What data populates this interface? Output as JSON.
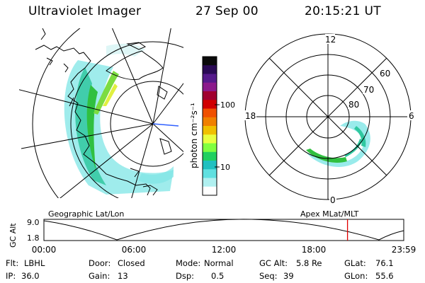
{
  "header": {
    "instrument": "Ultraviolet Imager",
    "date": "27 Sep 00",
    "time": "20:15:21 UT"
  },
  "geo_panel": {
    "caption": "Geographic Lat/Lon"
  },
  "colorbar": {
    "unit": "photon cm⁻²s⁻¹",
    "tick_labels": [
      "100",
      "10"
    ],
    "colors": [
      "#0a0a0a",
      "#2a0a55",
      "#551a8b",
      "#8b1a8b",
      "#a00030",
      "#d00000",
      "#f05000",
      "#f08000",
      "#f0c000",
      "#e8ff40",
      "#80ff40",
      "#20d060",
      "#20c0c0",
      "#60e0e0",
      "#b0f0f0",
      "#ffffff"
    ]
  },
  "apex_panel": {
    "caption": "Apex MLat/MLT",
    "mlt_labels": {
      "top": "12",
      "left": "18",
      "right": "6",
      "bottom": "0"
    },
    "lat_labels": [
      "60",
      "70",
      "80"
    ]
  },
  "orbit_plot": {
    "ylabel": "GC Alt",
    "y_ticks": [
      "9.0",
      "1.8"
    ],
    "x_ticks": [
      "00:00",
      "06:00",
      "12:00",
      "18:00",
      "23:59"
    ],
    "marker_color": "#e00000",
    "marker_time_hours": 20.25
  },
  "info": {
    "flt_label": "Flt:",
    "flt_value": "LBHL",
    "ip_label": "IP:",
    "ip_value": "36.0",
    "door_label": "Door:",
    "door_value": "Closed",
    "gain_label": "Gain:",
    "gain_value": "13",
    "mode_label": "Mode:",
    "mode_value": "Normal",
    "dsp_label": "Dsp:",
    "dsp_value": "0.5",
    "gcalt_label": "GC Alt:",
    "gcalt_value": "5.8 Re",
    "seq_label": "Seq:",
    "seq_value": "39",
    "glat_label": "GLat:",
    "glat_value": "76.1",
    "glon_label": "GLon:",
    "glon_value": "55.6"
  }
}
